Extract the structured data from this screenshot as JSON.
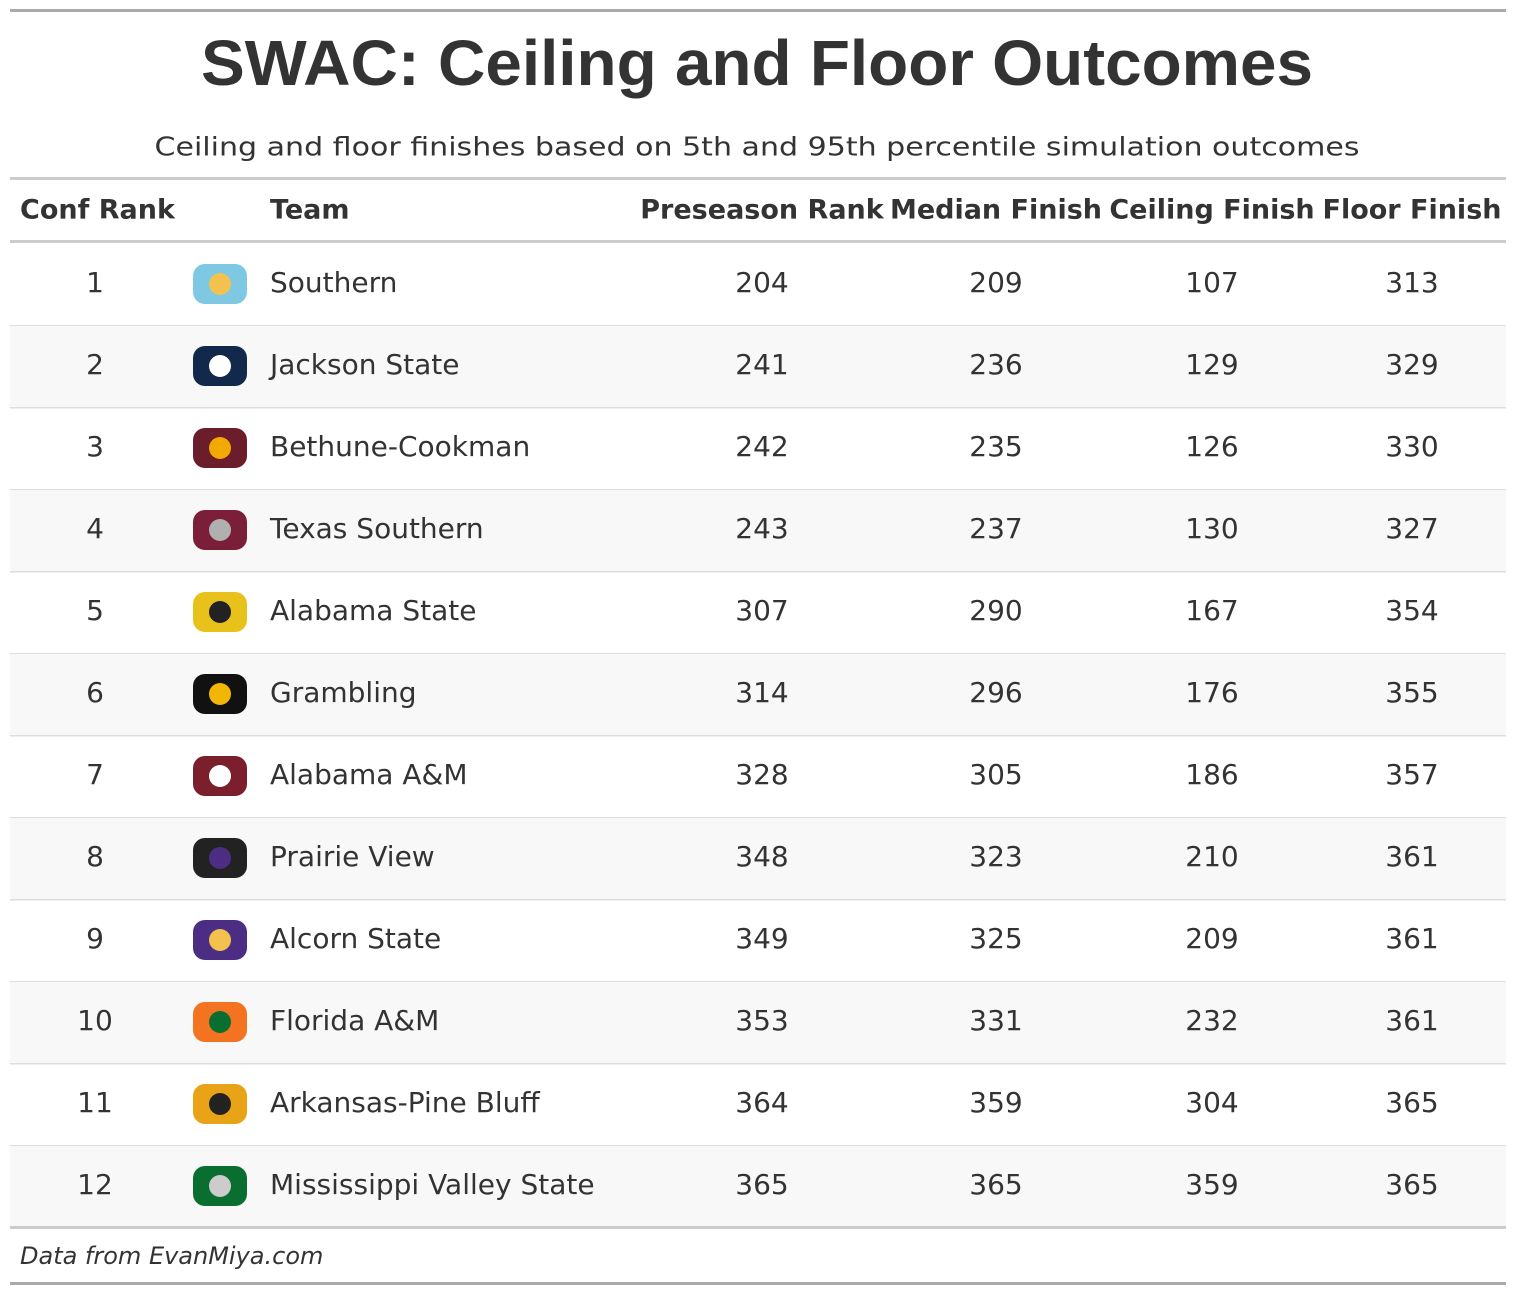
{
  "header": {
    "title": "SWAC: Ceiling and Floor Outcomes",
    "subtitle": "Ceiling and floor finishes based on 5th and 95th percentile simulation outcomes"
  },
  "table": {
    "columns": [
      "Conf Rank",
      "Team",
      "Preseason Rank",
      "Median Finish",
      "Ceiling Finish",
      "Floor Finish"
    ],
    "rows": [
      [
        1,
        "Southern",
        204,
        209,
        107,
        313
      ],
      [
        2,
        "Jackson State",
        241,
        236,
        129,
        329
      ],
      [
        3,
        "Bethune-Cookman",
        242,
        235,
        126,
        330
      ],
      [
        4,
        "Texas Southern",
        243,
        237,
        130,
        327
      ],
      [
        5,
        "Alabama State",
        307,
        290,
        167,
        354
      ],
      [
        6,
        "Grambling",
        314,
        296,
        176,
        355
      ],
      [
        7,
        "Alabama A&M",
        328,
        305,
        186,
        357
      ],
      [
        8,
        "Prairie View",
        348,
        323,
        210,
        361
      ],
      [
        9,
        "Alcorn State",
        349,
        325,
        209,
        361
      ],
      [
        10,
        "Florida A&M",
        353,
        331,
        232,
        361
      ],
      [
        11,
        "Arkansas-Pine Bluff",
        364,
        359,
        304,
        365
      ],
      [
        12,
        "Mississippi Valley State",
        365,
        365,
        359,
        365
      ]
    ]
  },
  "footer": {
    "source": "Data from EvanMiya.com"
  }
}
